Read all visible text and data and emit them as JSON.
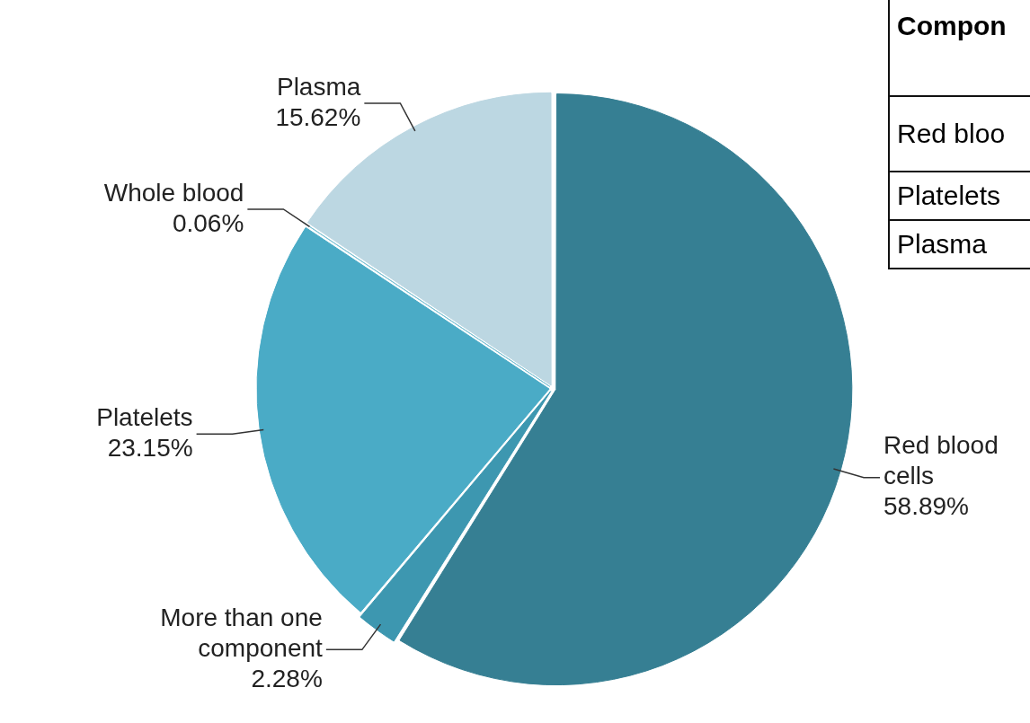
{
  "chart_data": [
    {
      "type": "pie",
      "categories": [
        "Red blood cells",
        "More than one component",
        "Platelets",
        "Whole blood",
        "Plasma"
      ],
      "values": [
        58.89,
        2.28,
        23.15,
        0.06,
        15.62
      ],
      "colors": [
        "#367f93",
        "#3d97b0",
        "#4aabc6",
        "#7cc1d4",
        "#bcd7e2"
      ],
      "value_labels": [
        "58.89%",
        "2.28%",
        "23.15%",
        "0.06%",
        "15.62%"
      ]
    },
    {
      "type": "other",
      "title": "Compon",
      "annotations": [
        "Red bloo",
        "Platelets",
        "Plasma"
      ]
    }
  ]
}
